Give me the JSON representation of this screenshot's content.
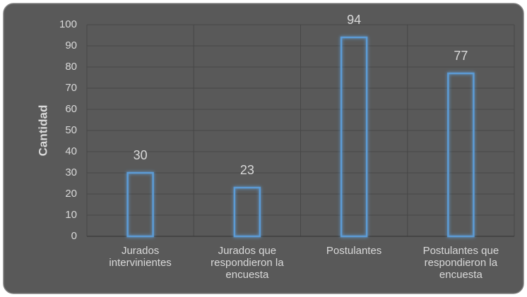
{
  "chart_data": {
    "type": "bar",
    "y_label": "Cantidad",
    "categories": [
      "Jurados intervinientes",
      "Jurados que respondieron la encuesta",
      "Postulantes",
      "Postulantes que respondieron la encuesta"
    ],
    "values": [
      30,
      23,
      94,
      77
    ],
    "color": "#5b9bd5",
    "ylim": [
      0,
      100
    ],
    "yticks": [
      0,
      10,
      20,
      30,
      40,
      50,
      60,
      70,
      80,
      90,
      100
    ],
    "grid": true
  }
}
